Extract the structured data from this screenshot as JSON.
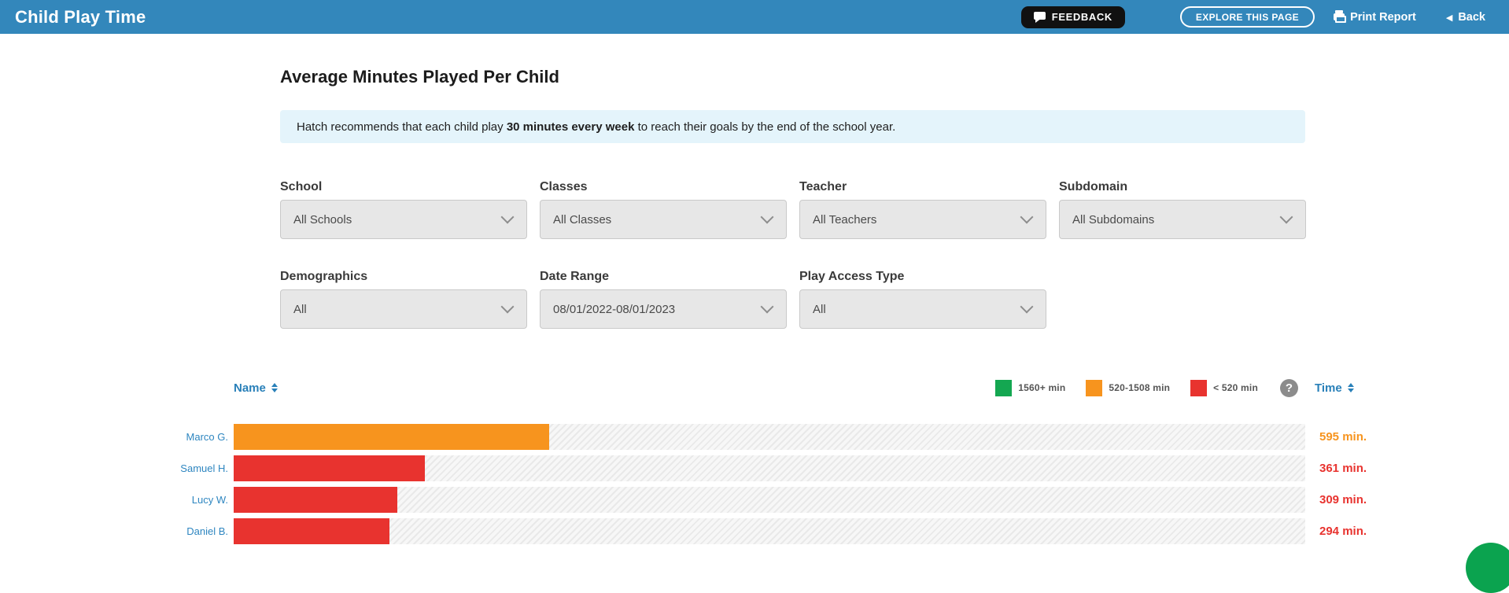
{
  "header": {
    "app_title": "Child Play Time",
    "feedback_label": "FEEDBACK",
    "explore_label": "EXPLORE THIS PAGE",
    "print_label": "Print Report",
    "back_icon": "◀",
    "back_label": "Back"
  },
  "page": {
    "title": "Average Minutes Played Per Child",
    "banner": {
      "text_pre": "Hatch recommends that each child play ",
      "text_bold": "30 minutes every week",
      "text_post": " to reach their goals by the end of the school year."
    }
  },
  "filters": {
    "row1": [
      {
        "label": "School",
        "value": "All Schools"
      },
      {
        "label": "Classes",
        "value": "All Classes"
      },
      {
        "label": "Teacher",
        "value": "All Teachers"
      },
      {
        "label": "Subdomain",
        "value": "All Subdomains"
      }
    ],
    "row2": [
      {
        "label": "Demographics",
        "value": "All"
      },
      {
        "label": "Date Range",
        "value": "08/01/2022-08/01/2023"
      },
      {
        "label": "Play Access Type",
        "value": "All"
      }
    ]
  },
  "chart": {
    "name_header": "Name",
    "time_header": "Time",
    "help_icon": "?",
    "legend": [
      {
        "label": "1560+ min",
        "color": "#14a751"
      },
      {
        "label": "520-1508 min",
        "color": "#f7941e"
      },
      {
        "label": "< 520 min",
        "color": "#e8332f"
      }
    ]
  },
  "chart_data": {
    "type": "bar",
    "orientation": "horizontal",
    "title": "Average Minutes Played Per Child",
    "categories": [
      "Marco G.",
      "Samuel H.",
      "Lucy W.",
      "Daniel B."
    ],
    "values": [
      595,
      361,
      309,
      294
    ],
    "value_labels": [
      "595 min.",
      "361 min.",
      "309 min.",
      "294 min."
    ],
    "bar_colors": [
      "#f7941e",
      "#e8332f",
      "#e8332f",
      "#e8332f"
    ],
    "unit": "min.",
    "xlim": [
      0,
      2020
    ],
    "grid": false,
    "legend_position": "top-right",
    "legend_thresholds": [
      {
        "range": "1560+ min",
        "color": "#14a751"
      },
      {
        "range": "520-1508 min",
        "color": "#f7941e"
      },
      {
        "range": "< 520 min",
        "color": "#e8332f"
      }
    ]
  },
  "colors": {
    "appbar": "#3387bb",
    "banner_bg": "#e4f4fb",
    "link_blue": "#2e86c0",
    "sort_blue": "#2980b9",
    "fab_green": "#0ba34f"
  }
}
